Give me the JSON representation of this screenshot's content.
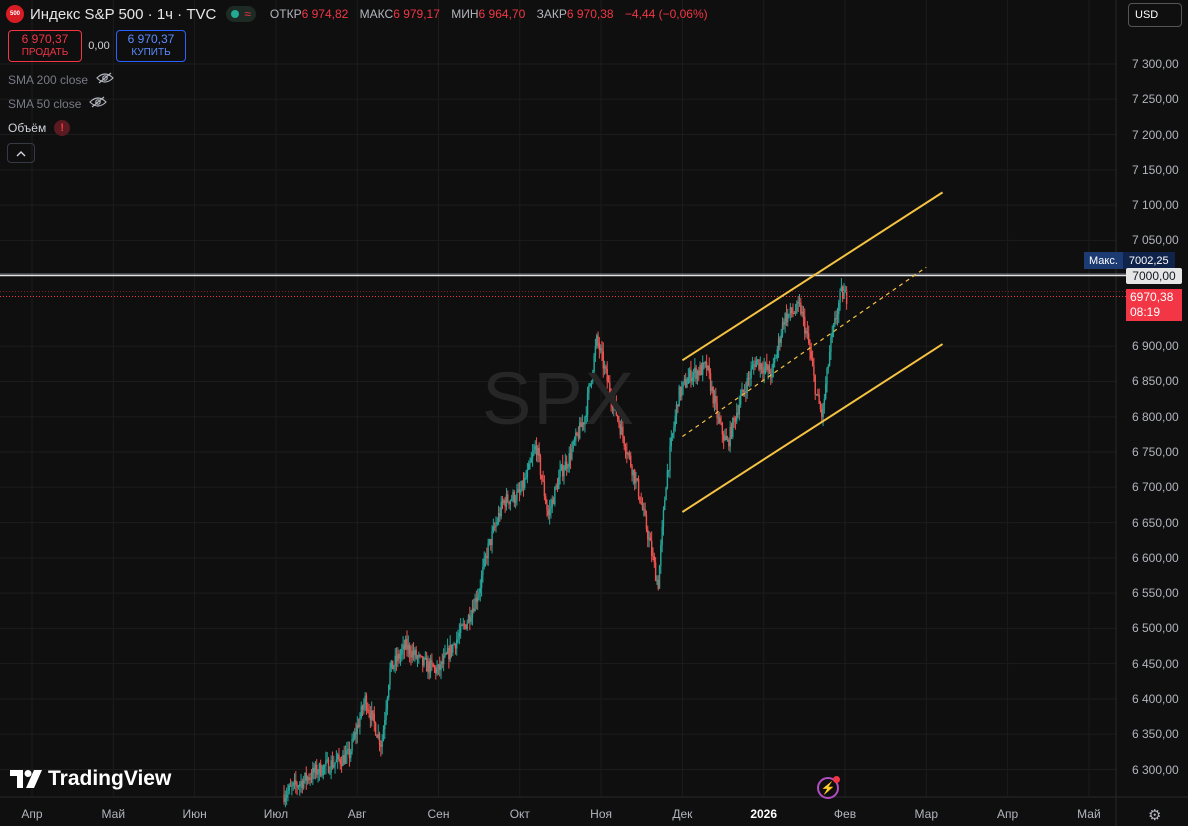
{
  "header": {
    "symbol_icon": "500",
    "title": "Индекс S&P 500 · 1ч · TVC",
    "market_wave": "≈",
    "ohlc": [
      {
        "label": "ОТКР",
        "value": "6 974,82"
      },
      {
        "label": "МАКС",
        "value": "6 979,17"
      },
      {
        "label": "МИН",
        "value": "6 964,70"
      },
      {
        "label": "ЗАКР",
        "value": "6 970,38"
      }
    ],
    "change": "−4,44 (−0,06%)"
  },
  "trade": {
    "sell_price": "6 970,37",
    "sell_label": "ПРОДАТЬ",
    "spread": "0,00",
    "buy_price": "6 970,37",
    "buy_label": "КУПИТЬ"
  },
  "indicators": {
    "sma200": "SMA 200 close",
    "sma50": "SMA 50 close",
    "volume": "Объём",
    "volume_warn": "!"
  },
  "currency": "USD",
  "watermark": "SPX",
  "tags": {
    "max_label": "Макс.",
    "max_value": "7002,25",
    "level_value": "7000,00",
    "last_price": "6970,38",
    "countdown": "08:19"
  },
  "brand": "TradingView",
  "colors": {
    "up": "#26a69a",
    "down": "#ef5350",
    "channel": "#f5c242",
    "background": "#0f0f0f",
    "accent_red": "#f23645",
    "accent_blue": "#2962ff"
  },
  "chart_data": {
    "type": "candlestick",
    "title": "Индекс S&P 500 · 1ч · TVC",
    "xlabel": "",
    "ylabel": "",
    "ylim": [
      6260,
      7330
    ],
    "y_ticks": [
      {
        "value": 7300,
        "label": "7 300,00"
      },
      {
        "value": 7250,
        "label": "7 250,00"
      },
      {
        "value": 7200,
        "label": "7 200,00"
      },
      {
        "value": 7150,
        "label": "7 150,00"
      },
      {
        "value": 7100,
        "label": "7 100,00"
      },
      {
        "value": 7050,
        "label": "7 050,00"
      },
      {
        "value": 6900,
        "label": "6 900,00"
      },
      {
        "value": 6850,
        "label": "6 850,00"
      },
      {
        "value": 6800,
        "label": "6 800,00"
      },
      {
        "value": 6750,
        "label": "6 750,00"
      },
      {
        "value": 6700,
        "label": "6 700,00"
      },
      {
        "value": 6650,
        "label": "6 650,00"
      },
      {
        "value": 6600,
        "label": "6 600,00"
      },
      {
        "value": 6550,
        "label": "6 550,00"
      },
      {
        "value": 6500,
        "label": "6 500,00"
      },
      {
        "value": 6450,
        "label": "6 450,00"
      },
      {
        "value": 6400,
        "label": "6 400,00"
      },
      {
        "value": 6350,
        "label": "6 350,00"
      },
      {
        "value": 6300,
        "label": "6 300,00"
      }
    ],
    "x_ticks": [
      {
        "t": 0,
        "label": "Апр"
      },
      {
        "t": 1,
        "label": "Май"
      },
      {
        "t": 2,
        "label": "Июн"
      },
      {
        "t": 3,
        "label": "Июл"
      },
      {
        "t": 4,
        "label": "Авг"
      },
      {
        "t": 5,
        "label": "Сен"
      },
      {
        "t": 6,
        "label": "Окт"
      },
      {
        "t": 7,
        "label": "Ноя"
      },
      {
        "t": 8,
        "label": "Дек"
      },
      {
        "t": 9,
        "label": "2026",
        "bold": true
      },
      {
        "t": 10,
        "label": "Фев"
      },
      {
        "t": 11,
        "label": "Мар"
      },
      {
        "t": 12,
        "label": "Апр"
      },
      {
        "t": 13,
        "label": "Май"
      }
    ],
    "price_anchors": [
      [
        3.1,
        6265
      ],
      [
        3.5,
        6298
      ],
      [
        3.9,
        6320
      ],
      [
        4.0,
        6360
      ],
      [
        4.1,
        6400
      ],
      [
        4.3,
        6335
      ],
      [
        4.4,
        6440
      ],
      [
        4.6,
        6475
      ],
      [
        4.8,
        6450
      ],
      [
        5.0,
        6440
      ],
      [
        5.2,
        6480
      ],
      [
        5.35,
        6510
      ],
      [
        5.5,
        6555
      ],
      [
        5.6,
        6610
      ],
      [
        5.8,
        6680
      ],
      [
        6.0,
        6690
      ],
      [
        6.1,
        6720
      ],
      [
        6.2,
        6760
      ],
      [
        6.35,
        6660
      ],
      [
        6.5,
        6720
      ],
      [
        6.6,
        6740
      ],
      [
        6.8,
        6800
      ],
      [
        6.95,
        6910
      ],
      [
        7.1,
        6840
      ],
      [
        7.3,
        6760
      ],
      [
        7.45,
        6700
      ],
      [
        7.6,
        6620
      ],
      [
        7.7,
        6560
      ],
      [
        7.8,
        6710
      ],
      [
        7.95,
        6830
      ],
      [
        8.1,
        6860
      ],
      [
        8.3,
        6870
      ],
      [
        8.45,
        6790
      ],
      [
        8.55,
        6760
      ],
      [
        8.7,
        6820
      ],
      [
        8.9,
        6880
      ],
      [
        9.1,
        6860
      ],
      [
        9.25,
        6940
      ],
      [
        9.45,
        6955
      ],
      [
        9.55,
        6905
      ],
      [
        9.65,
        6830
      ],
      [
        9.72,
        6800
      ],
      [
        9.82,
        6900
      ],
      [
        9.95,
        6975
      ],
      [
        10.02,
        6970
      ]
    ],
    "series": [
      {
        "name": "channel-upper",
        "points": [
          [
            8.0,
            6880
          ],
          [
            11.2,
            7118
          ]
        ]
      },
      {
        "name": "channel-lower",
        "points": [
          [
            8.0,
            6665
          ],
          [
            11.2,
            6903
          ]
        ]
      },
      {
        "name": "channel-mid",
        "points": [
          [
            8.0,
            6772
          ],
          [
            11.0,
            7012
          ]
        ]
      },
      {
        "name": "level-7000",
        "value": 7000
      },
      {
        "name": "last-price",
        "value": 6970.38
      },
      {
        "name": "max-level",
        "value": 7002.25
      }
    ]
  }
}
